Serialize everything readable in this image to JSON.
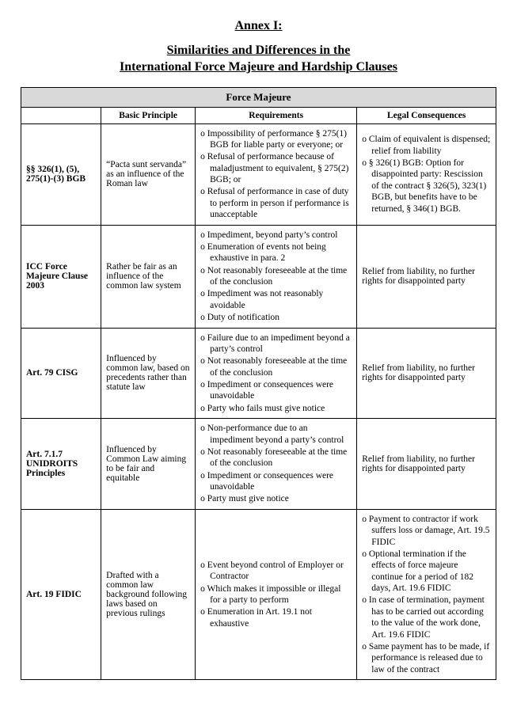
{
  "title": "Annex I:",
  "subtitle_line1": "Similarities and Differences in the",
  "subtitle_line2": "International Force Majeure and Hardship Clauses",
  "section_header": "Force Majeure",
  "columns": {
    "blank": "",
    "principle": "Basic Principle",
    "requirements": "Requirements",
    "legal": "Legal Consequences"
  },
  "rows": [
    {
      "label": "§§ 326(1), (5), 275(1)-(3) BGB",
      "principle": "“Pacta sunt servanda” as an influence of the Roman law",
      "requirements": [
        "Impossibility of performance § 275(1) BGB for liable party or everyone; or",
        "Refusal of performance because of maladjustment to equivalent, § 275(2) BGB; or",
        "Refusal of performance in case of duty to perform in person if performance is unacceptable"
      ],
      "legal": [
        "Claim of equivalent is dispensed; relief from liability",
        "§ 326(1) BGB: Option for disappointed party: Rescission of the contract § 326(5), 323(1) BGB, but benefits have to be returned, § 346(1) BGB."
      ]
    },
    {
      "label": "ICC Force Majeure Clause 2003",
      "principle": "Rather be fair as an influence of the common law system",
      "requirements": [
        "Impediment, beyond party’s control",
        "Enumeration of events not being exhaustive in para. 2",
        "Not reasonably foreseeable at the time of the conclusion",
        "Impediment was not reasonably avoidable",
        "Duty of notification"
      ],
      "legal_text": "Relief from liability, no further rights for disappointed party"
    },
    {
      "label": "Art. 79 CISG",
      "principle": "Influenced by common law, based on precedents rather than statute law",
      "requirements": [
        "Failure due to an impediment beyond a party’s control",
        "Not reasonably foreseeable at the time of the conclusion",
        "Impediment or consequences were unavoidable",
        "Party who fails must give notice"
      ],
      "legal_text": "Relief from liability, no further rights for disappointed party"
    },
    {
      "label": "Art. 7.1.7 UNIDROITS Principles",
      "principle": "Influenced by Common Law aiming to be fair and equitable",
      "requirements": [
        "Non-performance due to an impediment beyond a party’s control",
        "Not reasonably foreseeable at the time of the conclusion",
        "Impediment or consequences were unavoidable",
        "Party must give notice"
      ],
      "legal_text": "Relief from liability, no further rights for disappointed party"
    },
    {
      "label": "Art. 19 FIDIC",
      "principle": "Drafted with a common law background following laws based on previous rulings",
      "requirements": [
        "Event beyond control of Employer or Contractor",
        "Which makes it impossible or illegal for a party to perform",
        "Enumeration in Art. 19.1 not exhaustive"
      ],
      "legal": [
        "Payment to contractor if work suffers loss or damage, Art. 19.5 FIDIC",
        "Optional termination if the effects of force majeure continue for a period of 182 days, Art. 19.6 FIDIC",
        "In case of termination, payment has to be carried out according to the value of the work done, Art. 19.6 FIDIC",
        "Same payment has to be made, if performance is released due to law of the contract"
      ]
    }
  ]
}
